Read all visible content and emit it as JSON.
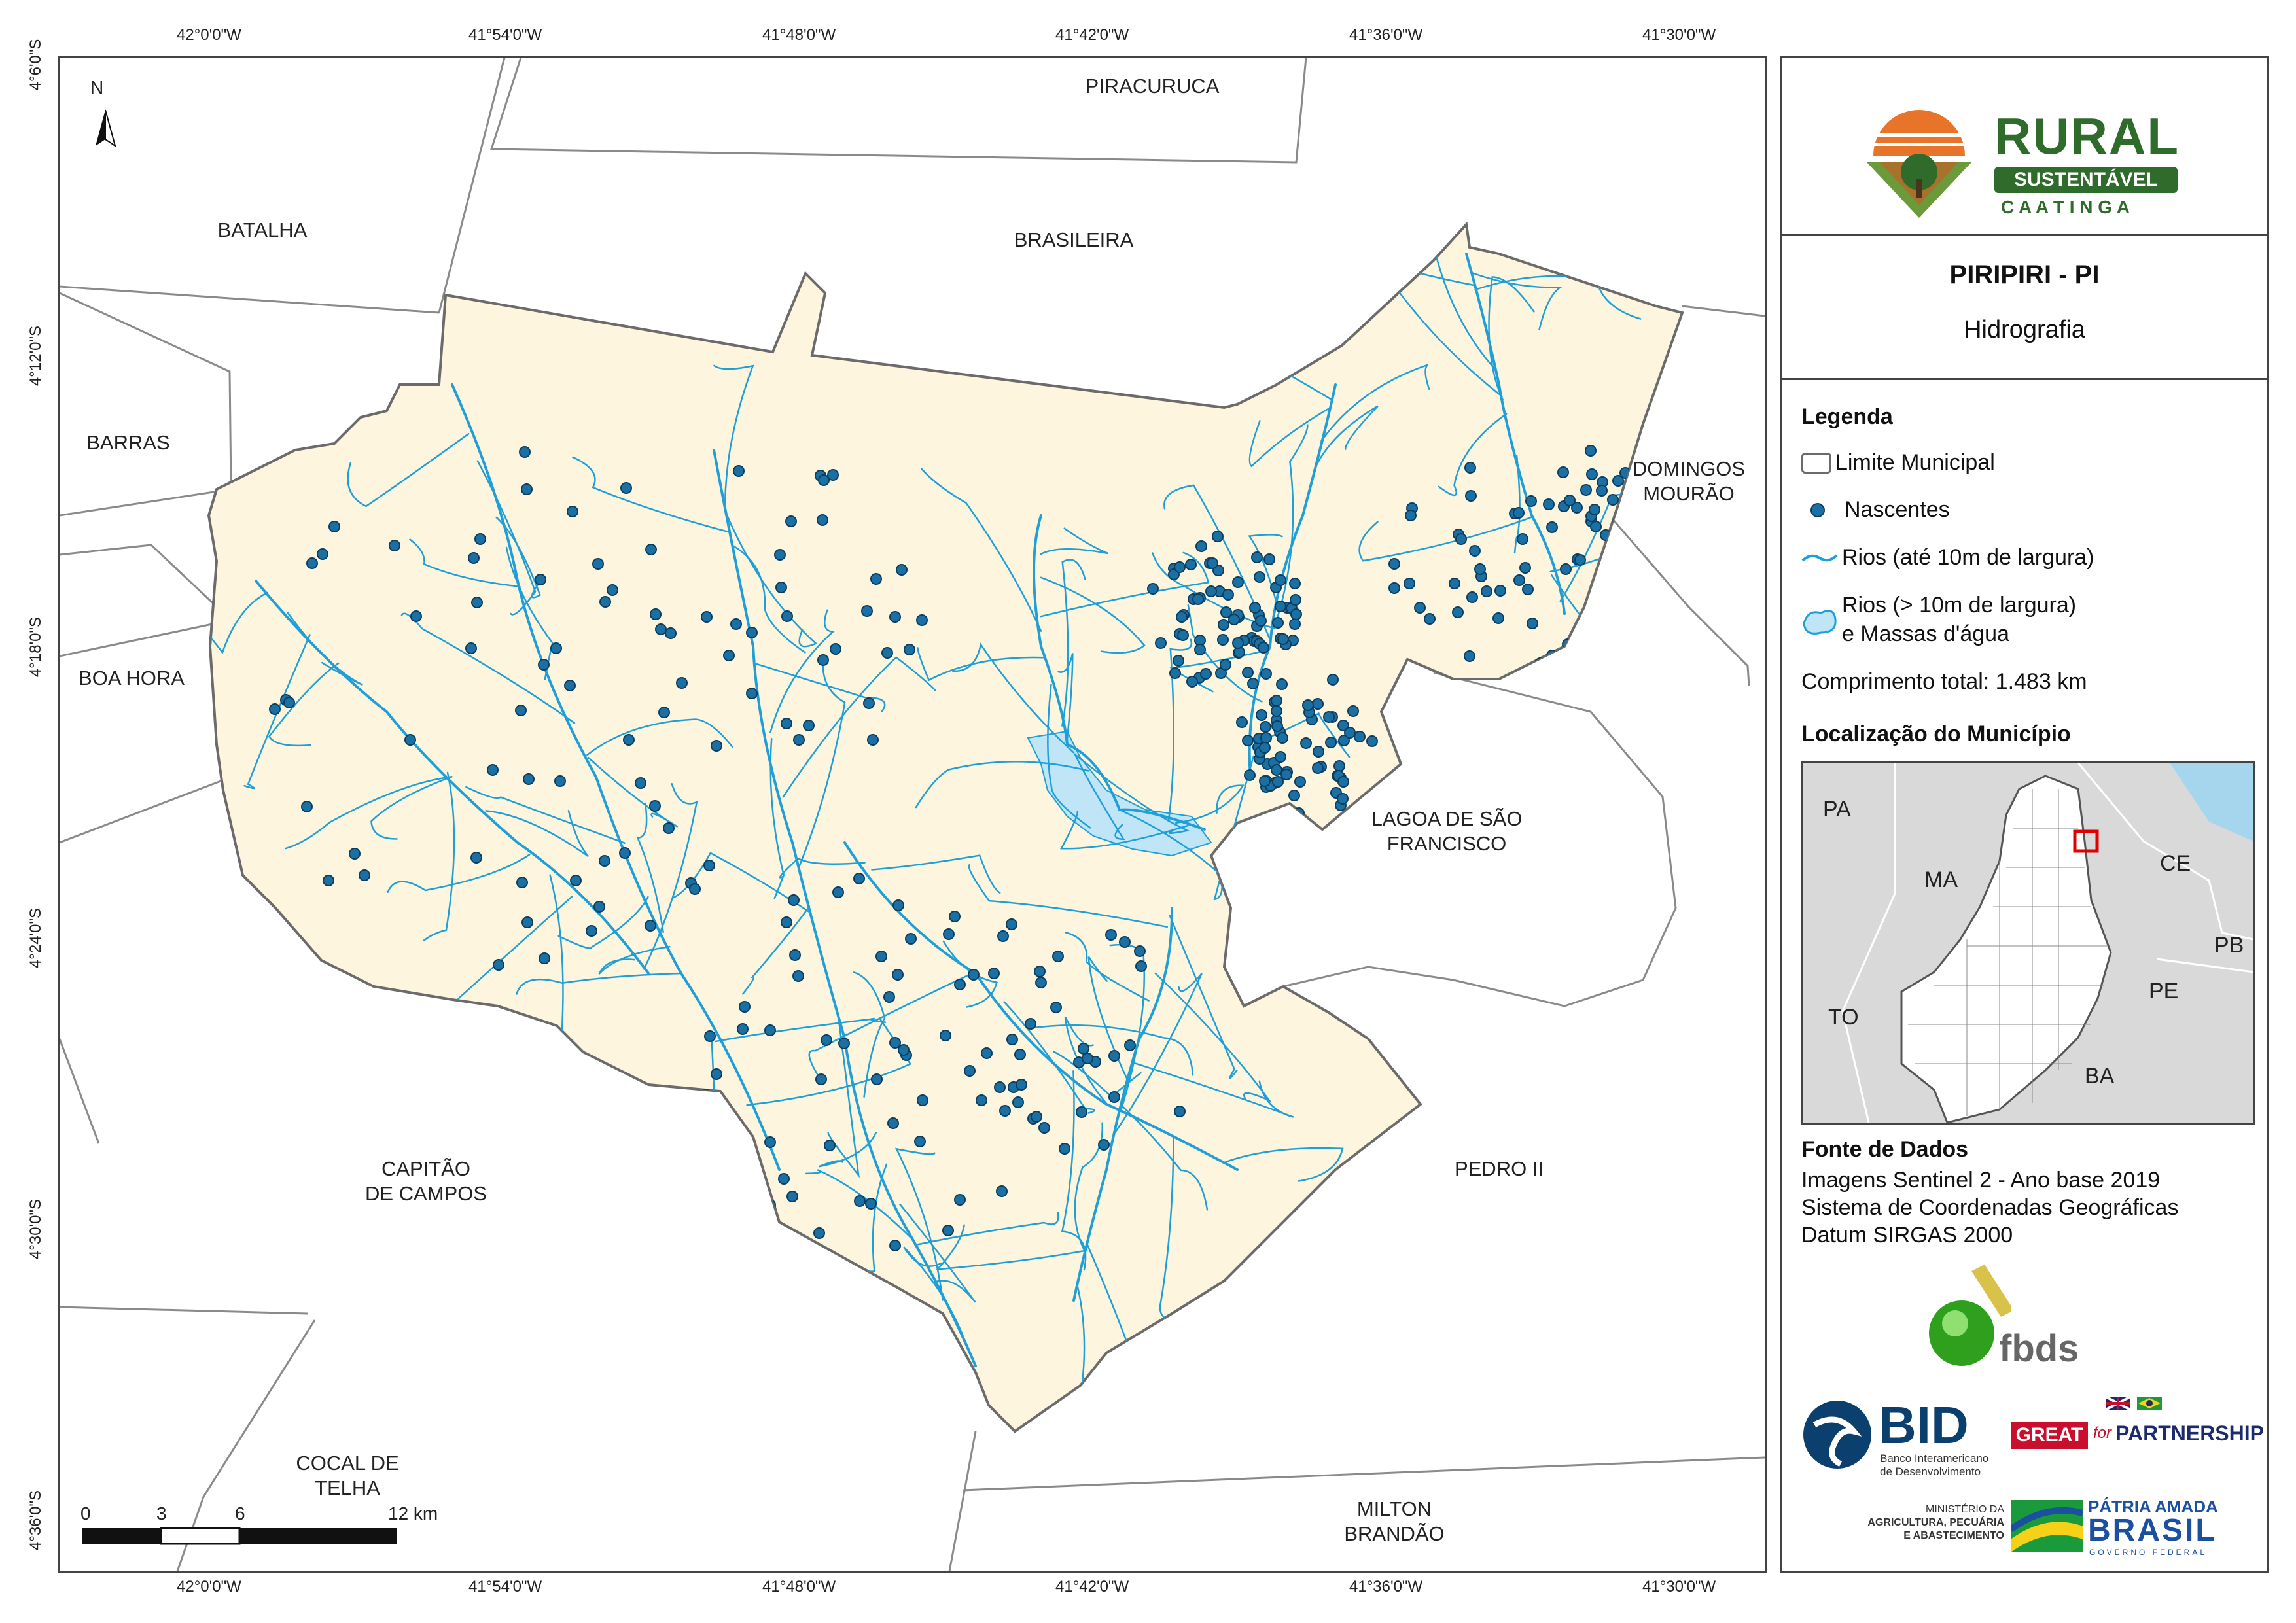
{
  "map": {
    "top_longitudes": [
      "42°0'0\"W",
      "41°54'0\"W",
      "41°48'0\"W",
      "41°42'0\"W",
      "41°36'0\"W",
      "41°30'0\"W"
    ],
    "bottom_longitudes": [
      "42°0'0\"W",
      "41°54'0\"W",
      "41°48'0\"W",
      "41°42'0\"W",
      "41°36'0\"W",
      "41°30'0\"W"
    ],
    "latitudes": [
      "4°6'0\"S",
      "4°12'0\"S",
      "4°18'0\"S",
      "4°24'0\"S",
      "4°30'0\"S",
      "4°36'0\"S"
    ],
    "north_label": "N",
    "neighbors": {
      "piracuruca": "PIRACURUCA",
      "batalha": "BATALHA",
      "brasileira": "BRASILEIRA",
      "barras": "BARRAS",
      "domingos_mourao": "DOMINGOS\nMOURÃO",
      "boa_hora": "BOA HORA",
      "lagoa": "LAGOA DE SÃO\nFRANCISCO",
      "capitao": "CAPITÃO\nDE CAMPOS",
      "pedro_ii": "PEDRO II",
      "cocal": "COCAL DE\nTELHA",
      "milton": "MILTON\nBRANDÃO"
    },
    "scale_labels": [
      "0",
      "3",
      "6",
      "12 km"
    ],
    "colors": {
      "municipality_fill": "#fdf5dd",
      "boundary": "#6b6b6b",
      "rivers": "#1e9fd8",
      "water_body": "#bfe5f6",
      "springs": "#1a6fa3"
    }
  },
  "panel": {
    "logo": {
      "rural": "RURAL",
      "sustentavel": "SUSTENTÁVEL",
      "caatinga": "C A A T I N G A"
    },
    "title": "PIRIPIRI - PI",
    "subtitle": "Hidrografia",
    "legend_title": "Legenda",
    "legend_items": {
      "limite": "Limite Municipal",
      "nascentes": "Nascentes",
      "rios": "Rios (até 10m de largura)",
      "rios_largos_1": "Rios (> 10m de largura)",
      "rios_largos_2": "e Massas d'água"
    },
    "comprimento": "Comprimento total:  1.483 km",
    "location_title": "Localização do Município",
    "location_labels": {
      "pa": "PA",
      "ma": "MA",
      "ce": "CE",
      "pb": "PB",
      "to": "TO",
      "pe": "PE",
      "ba": "BA"
    },
    "source_title": "Fonte de Dados",
    "sources": [
      "Imagens Sentinel 2 - Ano base 2019",
      "Sistema de Coordenadas Geográficas",
      "Datum SIRGAS 2000"
    ],
    "logos": {
      "fbds": "fbds",
      "bid": "BID",
      "bid_sub_1": "Banco Interamericano",
      "bid_sub_2": "de Desenvolvimento",
      "great": "GREAT",
      "for": "for",
      "partnership": "PARTNERSHIP",
      "ministerio_1": "MINISTÉRIO DA",
      "ministerio_2": "AGRICULTURA, PECUÁRIA",
      "ministerio_3": "E ABASTECIMENTO",
      "patria": "PÁTRIA AMADA",
      "brasil": "BRASIL",
      "governo": "GOVERNO FEDERAL"
    }
  }
}
